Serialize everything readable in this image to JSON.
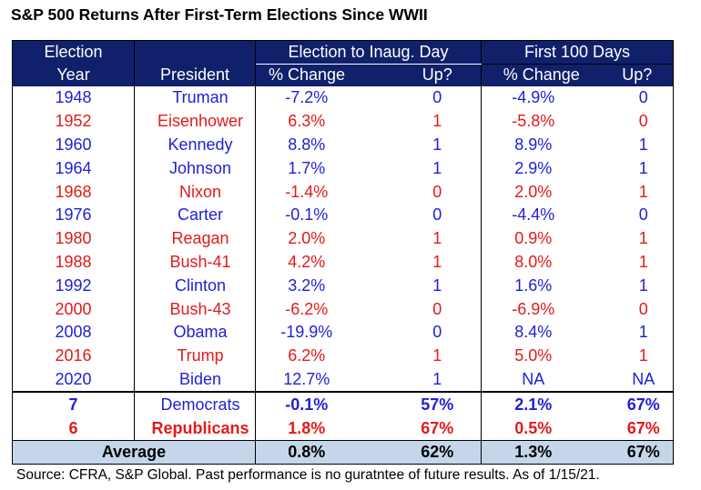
{
  "title": "S&P 500 Returns After First-Term Elections Since WWII",
  "headers": {
    "year_line1": "Election",
    "year_line2": "Year",
    "president": "President",
    "group1": "Election to Inaug. Day",
    "group2": "First 100 Days",
    "pct_change": "% Change",
    "up": "Up?"
  },
  "colors": {
    "header_bg": "#10206b",
    "average_bg": "#c5d6ea",
    "republican": "#e21a1a",
    "democrat": "#1f1fd6"
  },
  "chart_data": {
    "type": "table",
    "columns": [
      "Election Year",
      "President",
      "Election to Inaug. Day % Change",
      "Election to Inaug. Day Up?",
      "First 100 Days % Change",
      "First 100 Days Up?"
    ],
    "rows": [
      {
        "year": "1948",
        "president": "Truman",
        "party": "dem",
        "elec_pct": "-7.2%",
        "elec_up": "0",
        "d100_pct": "-4.9%",
        "d100_up": "0"
      },
      {
        "year": "1952",
        "president": "Eisenhower",
        "party": "rep",
        "elec_pct": "6.3%",
        "elec_up": "1",
        "d100_pct": "-5.8%",
        "d100_up": "0"
      },
      {
        "year": "1960",
        "president": "Kennedy",
        "party": "dem",
        "elec_pct": "8.8%",
        "elec_up": "1",
        "d100_pct": "8.9%",
        "d100_up": "1"
      },
      {
        "year": "1964",
        "president": "Johnson",
        "party": "dem",
        "elec_pct": "1.7%",
        "elec_up": "1",
        "d100_pct": "2.9%",
        "d100_up": "1"
      },
      {
        "year": "1968",
        "president": "Nixon",
        "party": "rep",
        "elec_pct": "-1.4%",
        "elec_up": "0",
        "d100_pct": "2.0%",
        "d100_up": "1"
      },
      {
        "year": "1976",
        "president": "Carter",
        "party": "dem",
        "elec_pct": "-0.1%",
        "elec_up": "0",
        "d100_pct": "-4.4%",
        "d100_up": "0"
      },
      {
        "year": "1980",
        "president": "Reagan",
        "party": "rep",
        "elec_pct": "2.0%",
        "elec_up": "1",
        "d100_pct": "0.9%",
        "d100_up": "1"
      },
      {
        "year": "1988",
        "president": "Bush-41",
        "party": "rep",
        "elec_pct": "4.2%",
        "elec_up": "1",
        "d100_pct": "8.0%",
        "d100_up": "1"
      },
      {
        "year": "1992",
        "president": "Clinton",
        "party": "dem",
        "elec_pct": "3.2%",
        "elec_up": "1",
        "d100_pct": "1.6%",
        "d100_up": "1"
      },
      {
        "year": "2000",
        "president": "Bush-43",
        "party": "rep",
        "elec_pct": "-6.2%",
        "elec_up": "0",
        "d100_pct": "-6.9%",
        "d100_up": "0"
      },
      {
        "year": "2008",
        "president": "Obama",
        "party": "dem",
        "elec_pct": "-19.9%",
        "elec_up": "0",
        "d100_pct": "8.4%",
        "d100_up": "1"
      },
      {
        "year": "2016",
        "president": "Trump",
        "party": "rep",
        "elec_pct": "6.2%",
        "elec_up": "1",
        "d100_pct": "5.0%",
        "d100_up": "1"
      },
      {
        "year": "2020",
        "president": "Biden",
        "party": "dem",
        "elec_pct": "12.7%",
        "elec_up": "1",
        "d100_pct": "NA",
        "d100_up": "NA"
      }
    ],
    "summary": [
      {
        "count": "7",
        "label": "Democrats",
        "party": "dem",
        "elec_pct": "-0.1%",
        "elec_up": "57%",
        "d100_pct": "2.1%",
        "d100_up": "67%"
      },
      {
        "count": "6",
        "label": "Republicans",
        "party": "rep",
        "elec_pct": "1.8%",
        "elec_up": "67%",
        "d100_pct": "0.5%",
        "d100_up": "67%"
      }
    ],
    "average": {
      "label": "Average",
      "elec_pct": "0.8%",
      "elec_up": "62%",
      "d100_pct": "1.3%",
      "d100_up": "67%"
    }
  },
  "source": "Source: CFRA, S&P Global. Past performance is no guratntee of future results. As of 1/15/21."
}
